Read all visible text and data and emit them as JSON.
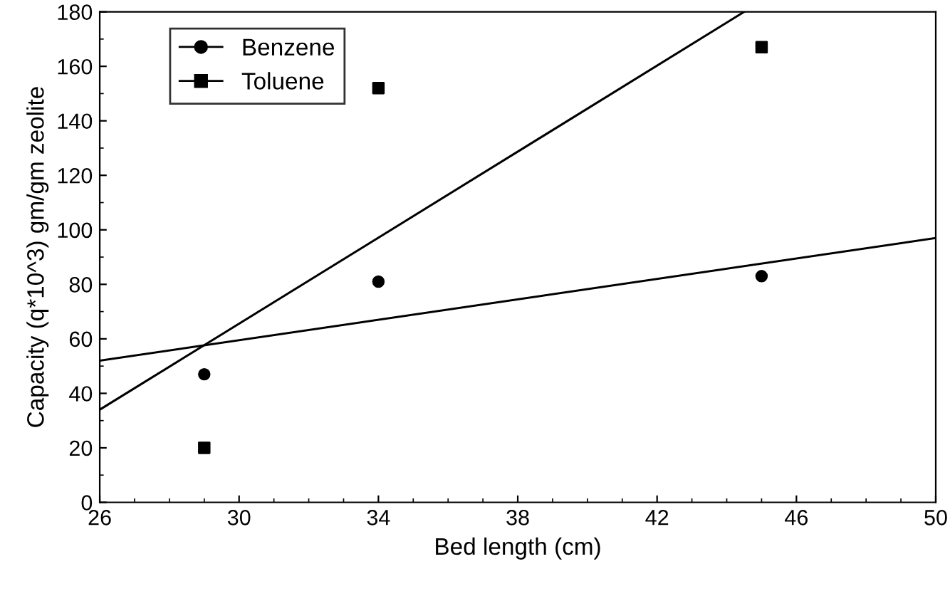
{
  "chart_data": {
    "type": "scatter",
    "xlabel": "Bed length (cm)",
    "ylabel": "Capacity (q*10^3) gm/gm zeolite",
    "xlim": [
      26,
      50
    ],
    "xticks": [
      26,
      30,
      34,
      38,
      42,
      46,
      50
    ],
    "ylim": [
      0,
      180
    ],
    "yticks": [
      0,
      20,
      40,
      60,
      80,
      100,
      120,
      140,
      160,
      180
    ],
    "legend": "top left",
    "grid": false,
    "series": [
      {
        "name": "Benzene",
        "color": "#000000",
        "marker": "circle",
        "x": [
          29,
          34,
          45
        ],
        "values": [
          47,
          81,
          83
        ]
      },
      {
        "name": "Toluene",
        "color": "#000000",
        "marker": "square",
        "x": [
          29,
          34,
          45
        ],
        "values": [
          20,
          152,
          167
        ]
      },
      {
        "type": "line",
        "color": "#000000",
        "marker": "none",
        "line_style": "solid",
        "x": [
          26,
          50
        ],
        "values": [
          52,
          97
        ]
      },
      {
        "type": "line",
        "color": "#000000",
        "marker": "none",
        "line_style": "solid",
        "x": [
          26,
          44.5
        ],
        "values": [
          34,
          180
        ]
      }
    ]
  }
}
